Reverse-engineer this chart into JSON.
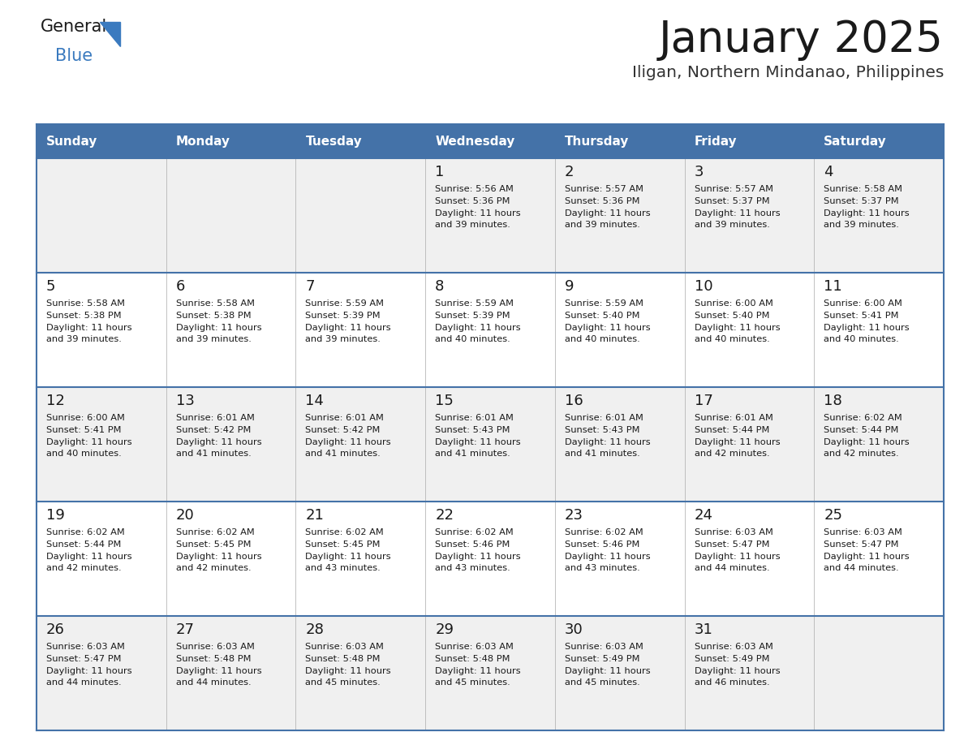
{
  "title": "January 2025",
  "subtitle": "Iligan, Northern Mindanao, Philippines",
  "header_bg": "#4472a8",
  "header_text_color": "#ffffff",
  "row_bg_odd": "#f0f0f0",
  "row_bg_even": "#ffffff",
  "border_color": "#4472a8",
  "cell_divider_color": "#aaaaaa",
  "day_names": [
    "Sunday",
    "Monday",
    "Tuesday",
    "Wednesday",
    "Thursday",
    "Friday",
    "Saturday"
  ],
  "weeks": [
    [
      {
        "day": "",
        "info": ""
      },
      {
        "day": "",
        "info": ""
      },
      {
        "day": "",
        "info": ""
      },
      {
        "day": "1",
        "info": "Sunrise: 5:56 AM\nSunset: 5:36 PM\nDaylight: 11 hours\nand 39 minutes."
      },
      {
        "day": "2",
        "info": "Sunrise: 5:57 AM\nSunset: 5:36 PM\nDaylight: 11 hours\nand 39 minutes."
      },
      {
        "day": "3",
        "info": "Sunrise: 5:57 AM\nSunset: 5:37 PM\nDaylight: 11 hours\nand 39 minutes."
      },
      {
        "day": "4",
        "info": "Sunrise: 5:58 AM\nSunset: 5:37 PM\nDaylight: 11 hours\nand 39 minutes."
      }
    ],
    [
      {
        "day": "5",
        "info": "Sunrise: 5:58 AM\nSunset: 5:38 PM\nDaylight: 11 hours\nand 39 minutes."
      },
      {
        "day": "6",
        "info": "Sunrise: 5:58 AM\nSunset: 5:38 PM\nDaylight: 11 hours\nand 39 minutes."
      },
      {
        "day": "7",
        "info": "Sunrise: 5:59 AM\nSunset: 5:39 PM\nDaylight: 11 hours\nand 39 minutes."
      },
      {
        "day": "8",
        "info": "Sunrise: 5:59 AM\nSunset: 5:39 PM\nDaylight: 11 hours\nand 40 minutes."
      },
      {
        "day": "9",
        "info": "Sunrise: 5:59 AM\nSunset: 5:40 PM\nDaylight: 11 hours\nand 40 minutes."
      },
      {
        "day": "10",
        "info": "Sunrise: 6:00 AM\nSunset: 5:40 PM\nDaylight: 11 hours\nand 40 minutes."
      },
      {
        "day": "11",
        "info": "Sunrise: 6:00 AM\nSunset: 5:41 PM\nDaylight: 11 hours\nand 40 minutes."
      }
    ],
    [
      {
        "day": "12",
        "info": "Sunrise: 6:00 AM\nSunset: 5:41 PM\nDaylight: 11 hours\nand 40 minutes."
      },
      {
        "day": "13",
        "info": "Sunrise: 6:01 AM\nSunset: 5:42 PM\nDaylight: 11 hours\nand 41 minutes."
      },
      {
        "day": "14",
        "info": "Sunrise: 6:01 AM\nSunset: 5:42 PM\nDaylight: 11 hours\nand 41 minutes."
      },
      {
        "day": "15",
        "info": "Sunrise: 6:01 AM\nSunset: 5:43 PM\nDaylight: 11 hours\nand 41 minutes."
      },
      {
        "day": "16",
        "info": "Sunrise: 6:01 AM\nSunset: 5:43 PM\nDaylight: 11 hours\nand 41 minutes."
      },
      {
        "day": "17",
        "info": "Sunrise: 6:01 AM\nSunset: 5:44 PM\nDaylight: 11 hours\nand 42 minutes."
      },
      {
        "day": "18",
        "info": "Sunrise: 6:02 AM\nSunset: 5:44 PM\nDaylight: 11 hours\nand 42 minutes."
      }
    ],
    [
      {
        "day": "19",
        "info": "Sunrise: 6:02 AM\nSunset: 5:44 PM\nDaylight: 11 hours\nand 42 minutes."
      },
      {
        "day": "20",
        "info": "Sunrise: 6:02 AM\nSunset: 5:45 PM\nDaylight: 11 hours\nand 42 minutes."
      },
      {
        "day": "21",
        "info": "Sunrise: 6:02 AM\nSunset: 5:45 PM\nDaylight: 11 hours\nand 43 minutes."
      },
      {
        "day": "22",
        "info": "Sunrise: 6:02 AM\nSunset: 5:46 PM\nDaylight: 11 hours\nand 43 minutes."
      },
      {
        "day": "23",
        "info": "Sunrise: 6:02 AM\nSunset: 5:46 PM\nDaylight: 11 hours\nand 43 minutes."
      },
      {
        "day": "24",
        "info": "Sunrise: 6:03 AM\nSunset: 5:47 PM\nDaylight: 11 hours\nand 44 minutes."
      },
      {
        "day": "25",
        "info": "Sunrise: 6:03 AM\nSunset: 5:47 PM\nDaylight: 11 hours\nand 44 minutes."
      }
    ],
    [
      {
        "day": "26",
        "info": "Sunrise: 6:03 AM\nSunset: 5:47 PM\nDaylight: 11 hours\nand 44 minutes."
      },
      {
        "day": "27",
        "info": "Sunrise: 6:03 AM\nSunset: 5:48 PM\nDaylight: 11 hours\nand 44 minutes."
      },
      {
        "day": "28",
        "info": "Sunrise: 6:03 AM\nSunset: 5:48 PM\nDaylight: 11 hours\nand 45 minutes."
      },
      {
        "day": "29",
        "info": "Sunrise: 6:03 AM\nSunset: 5:48 PM\nDaylight: 11 hours\nand 45 minutes."
      },
      {
        "day": "30",
        "info": "Sunrise: 6:03 AM\nSunset: 5:49 PM\nDaylight: 11 hours\nand 45 minutes."
      },
      {
        "day": "31",
        "info": "Sunrise: 6:03 AM\nSunset: 5:49 PM\nDaylight: 11 hours\nand 46 minutes."
      },
      {
        "day": "",
        "info": ""
      }
    ]
  ],
  "logo_general_color": "#1a1a1a",
  "logo_blue_color": "#3a7abf",
  "title_color": "#1a1a1a",
  "subtitle_color": "#333333",
  "fig_width": 11.88,
  "fig_height": 9.18,
  "dpi": 100
}
